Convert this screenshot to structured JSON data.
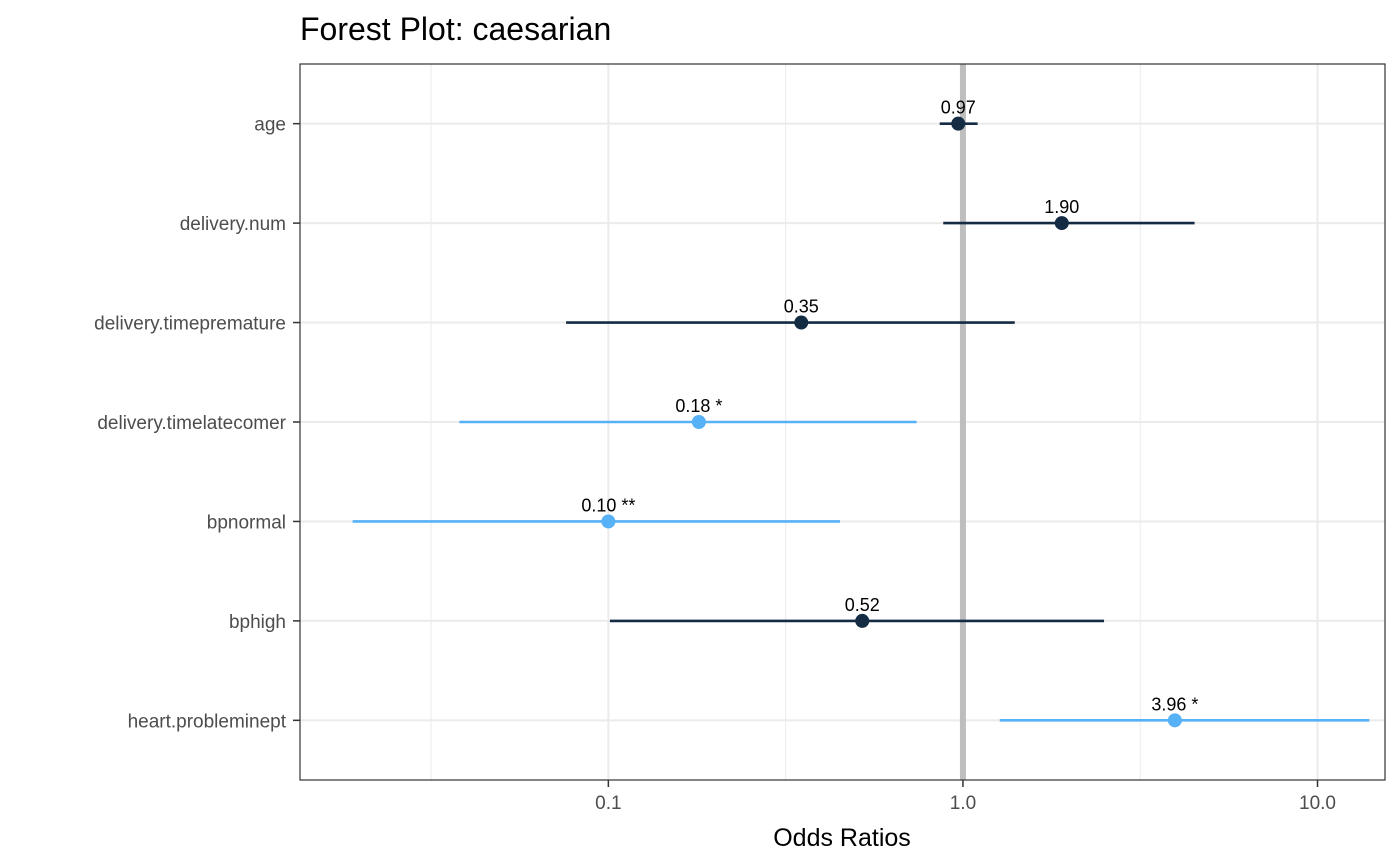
{
  "chart_data": {
    "type": "forest",
    "title": "Forest Plot: caesarian",
    "xlabel": "Odds Ratios",
    "ylabel": "",
    "x_scale": "log10",
    "xlim": [
      0.0135,
      15.5
    ],
    "x_ticks": [
      0.1,
      1.0,
      10.0
    ],
    "x_tick_labels": [
      "0.1",
      "1.0",
      "10.0"
    ],
    "reference_line": 1.0,
    "grid": true,
    "colors": {
      "not_significant": "#132b43",
      "significant": "#56b1f7",
      "reference_line": "#bebebe",
      "grid": "#ebebeb",
      "panel_border": "#333333"
    },
    "terms": [
      {
        "name": "age",
        "estimate": 0.97,
        "ci_low": 0.86,
        "ci_high": 1.1,
        "label": "0.97",
        "significant": false
      },
      {
        "name": "delivery.num",
        "estimate": 1.9,
        "ci_low": 0.88,
        "ci_high": 4.5,
        "label": "1.90",
        "significant": false
      },
      {
        "name": "delivery.timepremature",
        "estimate": 0.35,
        "ci_low": 0.076,
        "ci_high": 1.4,
        "label": "0.35",
        "significant": false
      },
      {
        "name": "delivery.timelatecomer",
        "estimate": 0.18,
        "ci_low": 0.038,
        "ci_high": 0.74,
        "label": "0.18 *",
        "significant": true
      },
      {
        "name": "bpnormal",
        "estimate": 0.1,
        "ci_low": 0.019,
        "ci_high": 0.45,
        "label": "0.10 **",
        "significant": true
      },
      {
        "name": "bphigh",
        "estimate": 0.52,
        "ci_low": 0.101,
        "ci_high": 2.5,
        "label": "0.52",
        "significant": false
      },
      {
        "name": "heart.probleminept",
        "estimate": 3.96,
        "ci_low": 1.27,
        "ci_high": 14.0,
        "label": "3.96 *",
        "significant": true
      }
    ]
  }
}
